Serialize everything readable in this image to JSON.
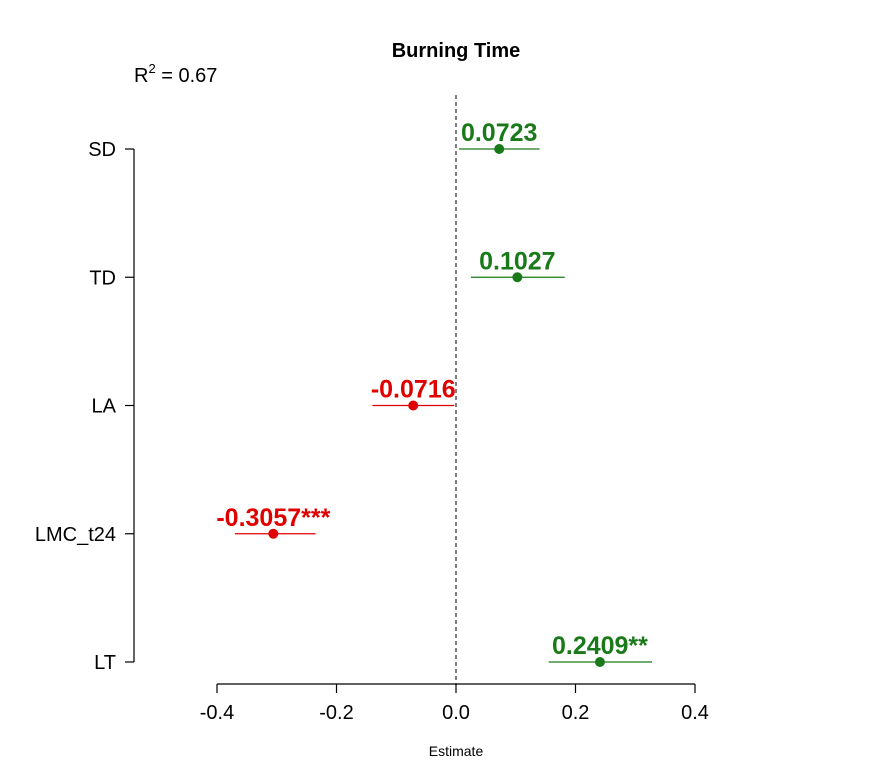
{
  "chart_data": {
    "type": "scatter",
    "title": "Burning Time",
    "r2_label": "R",
    "r2_sup": "2",
    "r2_value": " = 0.67",
    "xlabel": "Estimate",
    "xlim": [
      -0.5,
      0.55
    ],
    "xticks": [
      -0.4,
      -0.2,
      0.0,
      0.2,
      0.4
    ],
    "xtick_labels": [
      "-0.4",
      "-0.2",
      "0.0",
      "0.2",
      "0.4"
    ],
    "reference_line": 0,
    "grid": false,
    "positive_color": "#1a7a1a",
    "negative_color": "#e00000",
    "points": [
      {
        "term": "SD",
        "estimate": 0.0723,
        "low": 0.005,
        "high": 0.14,
        "label": "0.0723"
      },
      {
        "term": "TD",
        "estimate": 0.1027,
        "low": 0.025,
        "high": 0.182,
        "label": "0.1027"
      },
      {
        "term": "LA",
        "estimate": -0.0716,
        "low": -0.14,
        "high": -0.003,
        "label": "-0.0716"
      },
      {
        "term": "LMC_t24",
        "estimate": -0.3057,
        "low": -0.37,
        "high": -0.235,
        "label": "-0.3057***"
      },
      {
        "term": "LT",
        "estimate": 0.2409,
        "low": 0.155,
        "high": 0.328,
        "label": "0.2409**"
      }
    ]
  }
}
